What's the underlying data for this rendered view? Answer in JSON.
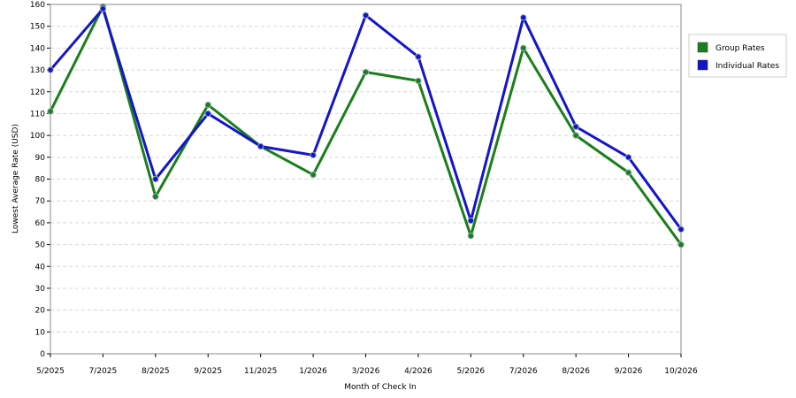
{
  "chart_data": {
    "type": "line",
    "x_label": "Month of Check In",
    "y_label": "Lowest Average Rate (USD)",
    "categories": [
      "5/2025",
      "7/2025",
      "8/2025",
      "9/2025",
      "11/2025",
      "1/2026",
      "3/2026",
      "4/2026",
      "5/2026",
      "7/2026",
      "8/2026",
      "9/2026",
      "10/2026"
    ],
    "series": [
      {
        "name": "Group Rates",
        "color": "#1a7f1a",
        "values": [
          111,
          159,
          72,
          114,
          95,
          82,
          129,
          125,
          54,
          140,
          100,
          83,
          50
        ]
      },
      {
        "name": "Individual Rates",
        "color": "#1414cc",
        "values": [
          130,
          158,
          80,
          110,
          95,
          91,
          155,
          136,
          61,
          154,
          104,
          90,
          57
        ]
      }
    ],
    "ylim": [
      0,
      160
    ],
    "yticks": [
      0,
      10,
      20,
      30,
      40,
      50,
      60,
      70,
      80,
      90,
      100,
      110,
      120,
      130,
      140,
      150,
      160
    ],
    "grid": true,
    "legend": "right"
  }
}
